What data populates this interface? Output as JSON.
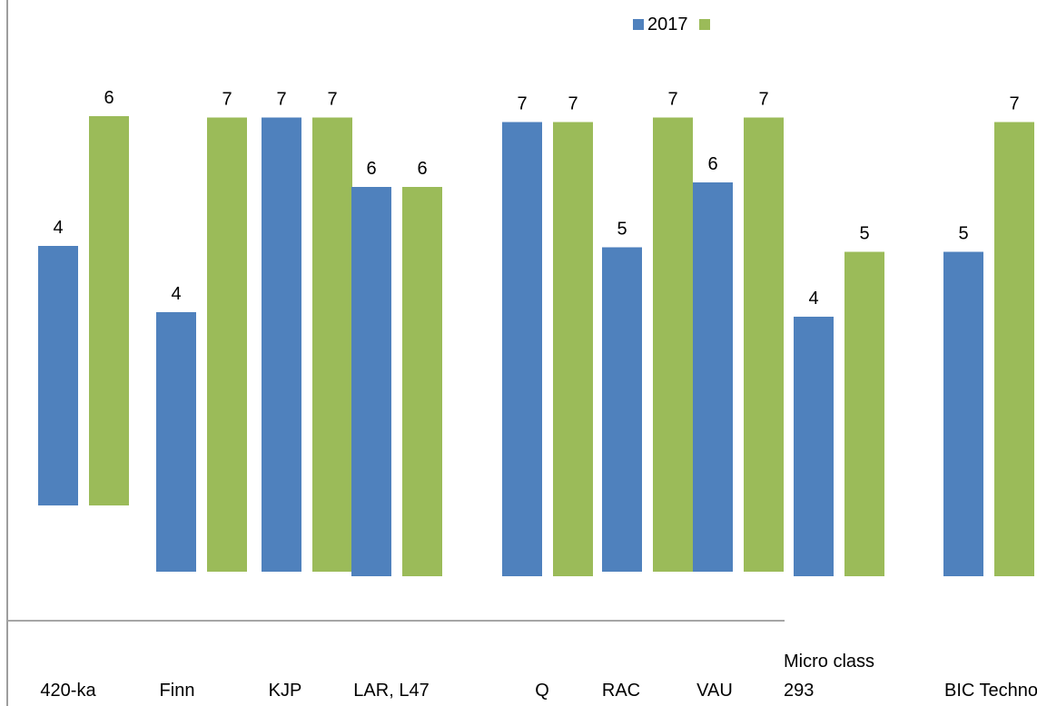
{
  "chart_data": {
    "type": "bar",
    "categories": [
      "420-ka",
      "Finn",
      "KJP",
      "LAR, L47",
      "Q",
      "RAC",
      "VAU",
      "Micro class 293",
      "BIC Techno"
    ],
    "category_labels": [
      [
        "420-ka"
      ],
      [
        "Finn"
      ],
      [
        "KJP"
      ],
      [
        "LAR, L47"
      ],
      [
        "Q"
      ],
      [
        "RAC"
      ],
      [
        "VAU"
      ],
      [
        "Micro class",
        "293"
      ],
      [
        "BIC Techno"
      ]
    ],
    "series": [
      {
        "name": "2017",
        "color": "#4f81bd",
        "values": [
          4,
          4,
          7,
          6,
          7,
          5,
          6,
          4,
          5
        ]
      },
      {
        "name": "",
        "color": "#9bbb59",
        "values": [
          6,
          7,
          7,
          6,
          7,
          7,
          7,
          5,
          7
        ]
      }
    ],
    "value_labels": {
      "series_0": [
        "4",
        "4",
        "7",
        "6",
        "7",
        "5",
        "6",
        "4",
        "5"
      ],
      "series_1": [
        "6",
        "7",
        "7",
        "6",
        "7",
        "7",
        "7",
        "5",
        "7"
      ]
    },
    "legend": {
      "position": "top-right"
    },
    "grid": false,
    "title": "",
    "xlabel": "",
    "ylabel": ""
  }
}
